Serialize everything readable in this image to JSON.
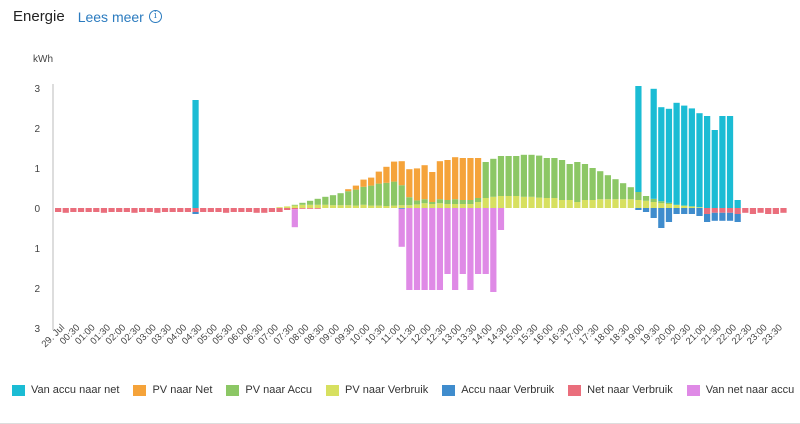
{
  "header": {
    "title": "Energie",
    "link_label": "Lees meer",
    "info_icon": "i"
  },
  "chart_data": {
    "type": "bar",
    "stacked": true,
    "ylabel": "kWh",
    "ylim": [
      -3,
      3
    ],
    "yticks": [
      3,
      2,
      1,
      0,
      1,
      2,
      3
    ],
    "time_labels": [
      "29. Jul",
      "00:30",
      "01:00",
      "01:30",
      "02:00",
      "02:30",
      "03:00",
      "03:30",
      "04:00",
      "04:30",
      "05:00",
      "05:30",
      "06:00",
      "06:30",
      "07:00",
      "07:30",
      "08:00",
      "08:30",
      "09:00",
      "09:30",
      "10:00",
      "10:30",
      "11:00",
      "11:30",
      "12:00",
      "12:30",
      "13:00",
      "13:30",
      "14:00",
      "14:30",
      "15:00",
      "15:30",
      "16:00",
      "16:30",
      "17:00",
      "17:30",
      "18:00",
      "18:30",
      "19:00",
      "19:30",
      "20:00",
      "20:30",
      "21:00",
      "21:30",
      "22:00",
      "22:30",
      "23:00",
      "23:30"
    ],
    "series": [
      {
        "name": "Van accu naar net",
        "color": "#1bbcd4",
        "values": [
          0,
          0,
          0,
          0,
          0,
          0,
          0,
          0,
          0,
          0,
          0,
          0,
          0,
          0,
          0,
          0,
          0,
          0,
          0,
          0,
          0,
          0,
          0,
          0,
          0,
          0,
          0,
          0,
          0,
          0,
          0,
          0,
          0,
          0,
          0,
          0,
          0,
          0,
          0,
          0,
          0,
          0,
          0,
          0,
          0,
          0,
          0,
          0,
          0,
          0,
          0,
          0,
          0,
          0,
          0,
          0,
          0,
          0,
          0,
          0,
          0,
          0,
          0,
          0,
          0,
          0,
          0,
          0,
          0,
          0,
          0,
          0,
          0,
          0,
          0,
          0,
          0,
          0,
          0,
          0,
          0,
          0,
          0,
          0,
          0,
          0,
          0,
          0,
          0,
          0,
          0,
          0,
          0,
          0,
          0,
          0,
          0,
          0,
          0,
          0,
          0,
          0,
          0,
          0,
          0,
          0,
          0,
          0,
          0,
          0,
          0,
          0,
          0,
          0,
          0,
          0,
          0,
          0,
          0,
          0,
          0,
          0,
          0,
          0,
          0,
          0,
          0,
          0,
          0,
          0,
          0,
          0,
          0,
          0,
          0,
          0,
          0,
          0,
          0,
          0,
          0,
          0,
          0,
          0,
          0,
          0,
          0,
          0,
          0,
          0,
          0,
          0,
          0,
          0,
          0,
          0,
          0,
          0,
          0,
          0,
          0,
          0,
          0,
          0,
          0,
          0,
          0,
          0,
          0,
          0,
          0,
          0,
          0,
          0,
          0,
          0,
          0,
          0,
          0,
          0,
          0,
          0,
          0,
          0,
          0,
          0,
          0,
          0,
          0,
          0,
          0,
          0,
          0,
          0,
          0,
          0,
          0,
          0,
          0,
          0,
          0,
          0,
          0,
          0,
          0,
          0,
          0,
          0,
          0,
          0,
          0,
          0,
          0,
          0,
          0,
          0,
          0,
          0,
          0,
          0,
          0,
          0,
          0,
          0,
          0,
          0,
          0,
          0,
          0,
          0,
          0,
          0,
          0,
          0,
          0,
          0,
          0,
          0,
          0,
          0,
          0,
          0,
          0,
          0,
          0,
          0,
          0,
          0,
          0,
          0,
          0,
          0,
          0,
          0,
          0,
          0,
          0,
          0,
          0,
          0,
          0,
          0,
          0,
          0,
          0,
          0,
          0,
          0,
          0,
          0,
          0,
          0,
          0,
          0,
          0,
          0,
          0,
          0,
          0,
          0,
          0,
          0,
          0,
          0,
          0,
          0,
          0,
          0,
          0,
          0,
          0,
          0,
          0,
          0,
          0,
          0,
          0,
          0,
          0,
          0,
          0,
          0,
          0,
          0
        ]
      },
      {
        "name": "PV naar Net",
        "color": "#f5a33a",
        "values": []
      },
      {
        "name": "PV naar Accu",
        "color": "#8cc765",
        "values": []
      },
      {
        "name": "PV naar Verbruik",
        "color": "#d7e060",
        "values": []
      },
      {
        "name": "Accu naar Verbruik",
        "color": "#3f8ccd",
        "values": []
      },
      {
        "name": "Net naar Verbruik",
        "color": "#ea6e7c",
        "values": []
      },
      {
        "name": "Van net naar accu",
        "color": "#df8ae6",
        "values": []
      }
    ],
    "bins": {
      "count": 96,
      "accu_to_net": {
        "18": 2.7,
        "76": 2.65,
        "78": 2.75,
        "79": 2.35,
        "80": 2.35,
        "81": 2.55,
        "82": 2.5,
        "83": 2.45,
        "84": 2.35,
        "85": 2.3,
        "86": 1.95,
        "87": 2.3,
        "88": 2.3,
        "89": 0.2
      },
      "pv_net": [
        0,
        0,
        0,
        0,
        0,
        0,
        0,
        0,
        0,
        0,
        0,
        0,
        0,
        0,
        0,
        0,
        0,
        0,
        0,
        0,
        0,
        0,
        0,
        0,
        0,
        0,
        0,
        0,
        0,
        0,
        0,
        0,
        0,
        0,
        0,
        0,
        0,
        0,
        0.05,
        0.1,
        0.18,
        0.2,
        0.3,
        0.4,
        0.5,
        0.6,
        0.7,
        0.8,
        0.85,
        0.75,
        0.95,
        1.0,
        1.05,
        1.05,
        1.05,
        1.0,
        0,
        0,
        0,
        0,
        0,
        0,
        0,
        0,
        0,
        0,
        0,
        0,
        0,
        0,
        0,
        0,
        0,
        0,
        0,
        0,
        0,
        0,
        0,
        0,
        0,
        0,
        0,
        0,
        0,
        0,
        0,
        0,
        0,
        0,
        0,
        0,
        0,
        0,
        0,
        0
      ],
      "pv_accu": [
        0,
        0,
        0,
        0,
        0,
        0,
        0,
        0,
        0,
        0,
        0,
        0,
        0,
        0,
        0,
        0,
        0,
        0,
        0,
        0,
        0,
        0,
        0,
        0,
        0,
        0,
        0,
        0,
        0,
        0,
        0,
        0.02,
        0.05,
        0.1,
        0.15,
        0.2,
        0.25,
        0.3,
        0.35,
        0.4,
        0.45,
        0.5,
        0.55,
        0.58,
        0.6,
        0.5,
        0.2,
        0.1,
        0.1,
        0.05,
        0.1,
        0.1,
        0.12,
        0.1,
        0.1,
        0.1,
        0.9,
        0.95,
        1.0,
        1.0,
        1.0,
        1.05,
        1.05,
        1.05,
        1.0,
        1.0,
        1.0,
        0.9,
        1.0,
        0.9,
        0.8,
        0.7,
        0.6,
        0.5,
        0.4,
        0.3,
        0.2,
        0.12,
        0.08,
        0.05,
        0.03,
        0,
        0,
        0,
        0,
        0,
        0,
        0,
        0,
        0,
        0,
        0,
        0,
        0,
        0,
        0
      ],
      "pv_verbr": [
        0,
        0,
        0,
        0,
        0,
        0,
        0,
        0,
        0,
        0,
        0,
        0,
        0,
        0,
        0,
        0,
        0,
        0,
        0,
        0,
        0,
        0,
        0,
        0,
        0,
        0,
        0,
        0,
        0,
        0.02,
        0.04,
        0.06,
        0.08,
        0.08,
        0.08,
        0.08,
        0.07,
        0.07,
        0.07,
        0.06,
        0.08,
        0.06,
        0.06,
        0.05,
        0.06,
        0.07,
        0.07,
        0.09,
        0.12,
        0.1,
        0.12,
        0.1,
        0.1,
        0.1,
        0.1,
        0.15,
        0.25,
        0.28,
        0.3,
        0.3,
        0.3,
        0.28,
        0.28,
        0.26,
        0.25,
        0.25,
        0.2,
        0.2,
        0.15,
        0.2,
        0.2,
        0.22,
        0.22,
        0.22,
        0.22,
        0.22,
        0.2,
        0.18,
        0.15,
        0.12,
        0.1,
        0.08,
        0.06,
        0.04,
        0.02,
        0,
        0,
        0,
        0,
        0,
        0,
        0,
        0,
        0,
        0,
        0
      ],
      "accu_verbr": {
        "18": -0.05,
        "45": -0.02,
        "76": -0.05,
        "77": -0.1,
        "78": -0.25,
        "79": -0.5,
        "80": -0.35,
        "81": -0.15,
        "82": -0.15,
        "83": -0.15,
        "84": -0.2,
        "85": -0.2,
        "86": -0.2,
        "87": -0.2,
        "88": -0.2,
        "89": -0.2
      },
      "net_verbr": [
        -0.1,
        -0.12,
        -0.1,
        -0.1,
        -0.1,
        -0.1,
        -0.12,
        -0.1,
        -0.1,
        -0.1,
        -0.12,
        -0.1,
        -0.1,
        -0.12,
        -0.1,
        -0.1,
        -0.1,
        -0.1,
        -0.1,
        -0.1,
        -0.1,
        -0.1,
        -0.12,
        -0.1,
        -0.1,
        -0.1,
        -0.12,
        -0.12,
        -0.1,
        -0.1,
        -0.05,
        -0.03,
        -0.02,
        -0.02,
        -0.02,
        0,
        0,
        0,
        0,
        0,
        0,
        0,
        0,
        0,
        0,
        0,
        0,
        0,
        0,
        0,
        0,
        0,
        0,
        0,
        0,
        0,
        0,
        0,
        0,
        0,
        0,
        0,
        0,
        0,
        0,
        0,
        0,
        0,
        0,
        0,
        0,
        0,
        0,
        0,
        0,
        0,
        0,
        0,
        0,
        0,
        0,
        0,
        0,
        0,
        0,
        -0.15,
        -0.12,
        -0.12,
        -0.12,
        -0.15,
        -0.12,
        -0.15,
        -0.12,
        -0.15,
        -0.15,
        -0.12
      ],
      "net_accu": {
        "31": -0.45,
        "45": -0.95,
        "46": -2.05,
        "47": -2.05,
        "48": -2.05,
        "49": -2.05,
        "50": -2.05,
        "51": -1.65,
        "52": -2.05,
        "53": -1.65,
        "54": -2.05,
        "55": -1.65,
        "56": -1.65,
        "57": -2.1,
        "58": -0.55
      }
    }
  },
  "legend": [
    {
      "label": "Van accu naar net",
      "color": "#1bbcd4"
    },
    {
      "label": "PV naar Net",
      "color": "#f5a33a"
    },
    {
      "label": "PV naar Accu",
      "color": "#8cc765"
    },
    {
      "label": "PV naar Verbruik",
      "color": "#d7e060"
    },
    {
      "label": "Accu naar Verbruik",
      "color": "#3f8ccd"
    },
    {
      "label": "Net naar Verbruik",
      "color": "#ea6e7c"
    },
    {
      "label": "Van net naar accu",
      "color": "#df8ae6"
    }
  ]
}
